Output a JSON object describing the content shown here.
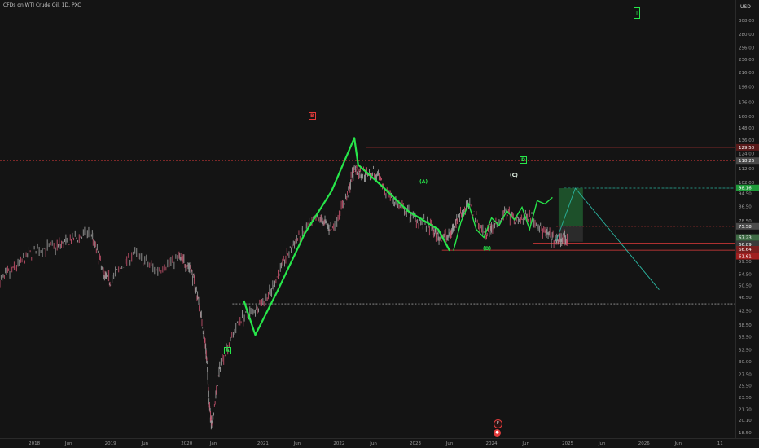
{
  "header": {
    "title": "CFDs on WTI Crude Oil, 1D, PXC",
    "currency": "USD"
  },
  "theme": {
    "background": "#141414",
    "price": "#8a8a8a",
    "wave": "#27e64a",
    "red": "#e23b3b",
    "cyan": "#2bb5a0",
    "target_box": "#1f5a2e"
  },
  "chart_data": {
    "type": "line",
    "title": "CFDs on WTI Crude Oil, 1D, PXC",
    "yscale": "log",
    "ylim": [
      16.5,
      325
    ],
    "y_ticks": [
      18.5,
      20.1,
      21.7,
      23.5,
      25.5,
      27.5,
      30.0,
      32.5,
      35.5,
      38.5,
      42.5,
      46.5,
      50.5,
      54.5,
      59.5,
      64.5,
      70.5,
      78.5,
      86.5,
      94.5,
      102.0,
      112.0,
      124.0,
      136.0,
      148.0,
      160.0,
      176.0,
      196.0,
      216.0,
      236.0,
      256.0,
      280.0,
      308.0
    ],
    "x_ticks": [
      "2018",
      "Jun",
      "2019",
      "Jun",
      "2020",
      "Jan",
      "2021",
      "Jun",
      "2022",
      "Jun",
      "2023",
      "Jun",
      "2024",
      "Jun",
      "2025",
      "Jun",
      "2026",
      "Jun",
      "11"
    ],
    "x_tick_values": [
      2018.0,
      2018.45,
      2019.0,
      2019.45,
      2020.0,
      2020.35,
      2021.0,
      2021.45,
      2022.0,
      2022.45,
      2023.0,
      2023.45,
      2024.0,
      2024.45,
      2025.0,
      2025.45,
      2026.0,
      2026.45,
      2027.0
    ],
    "xlim": [
      2017.55,
      2027.2
    ],
    "series": [
      {
        "x": [
          2017.55,
          2017.75,
          2018.0,
          2018.3,
          2018.5,
          2018.75,
          2018.9,
          2019.0,
          2019.3,
          2019.6,
          2019.9,
          2020.05,
          2020.15,
          2020.25,
          2020.3,
          2020.33,
          2020.45,
          2020.7,
          2020.9,
          2021.1,
          2021.3,
          2021.5,
          2021.75,
          2021.9,
          2022.1,
          2022.2,
          2022.3,
          2022.45,
          2022.6,
          2022.8,
          2023.0,
          2023.2,
          2023.3,
          2023.45,
          2023.55,
          2023.7,
          2023.9,
          2024.0,
          2024.2,
          2024.35,
          2024.5,
          2024.7,
          2024.85,
          2024.95,
          2025.0
        ],
        "y": [
          52,
          57,
          64,
          66,
          69,
          72,
          55,
          52,
          63,
          56,
          61,
          57,
          46,
          33,
          22,
          19,
          30,
          40,
          43,
          48,
          61,
          72,
          80,
          74,
          92,
          112,
          108,
          110,
          97,
          86,
          80,
          75,
          70,
          71,
          80,
          88,
          72,
          75,
          83,
          78,
          82,
          72,
          68,
          70,
          68
        ]
      },
      {
        "x": [
          2020.75,
          2020.9,
          2021.2,
          2021.55,
          2021.9,
          2022.2,
          2022.25,
          2022.55,
          2022.9,
          2023.3,
          2023.45
        ],
        "y": [
          45.5,
          36,
          49,
          72,
          96,
          138,
          115,
          100,
          84,
          74,
          64
        ]
      },
      {
        "x": [
          2024.85,
          2025.1,
          2026.2
        ],
        "y": [
          68.5,
          98,
          49
        ]
      }
    ],
    "wave_labels": [
      "A",
      "B",
      "(A)",
      "(B)",
      "(C)",
      "D",
      "I"
    ],
    "price_labels": [
      "129.50",
      "118.26",
      "98.16",
      "75.58",
      "67.23",
      "66.89",
      "66.64",
      "61.61"
    ],
    "levels": {
      "red_upper": 129.5,
      "red_lower": 64.2,
      "red_mid": 75.5,
      "cyan_upper": 98,
      "white_dashed": 44.5,
      "red_dashed": 118.3
    }
  }
}
